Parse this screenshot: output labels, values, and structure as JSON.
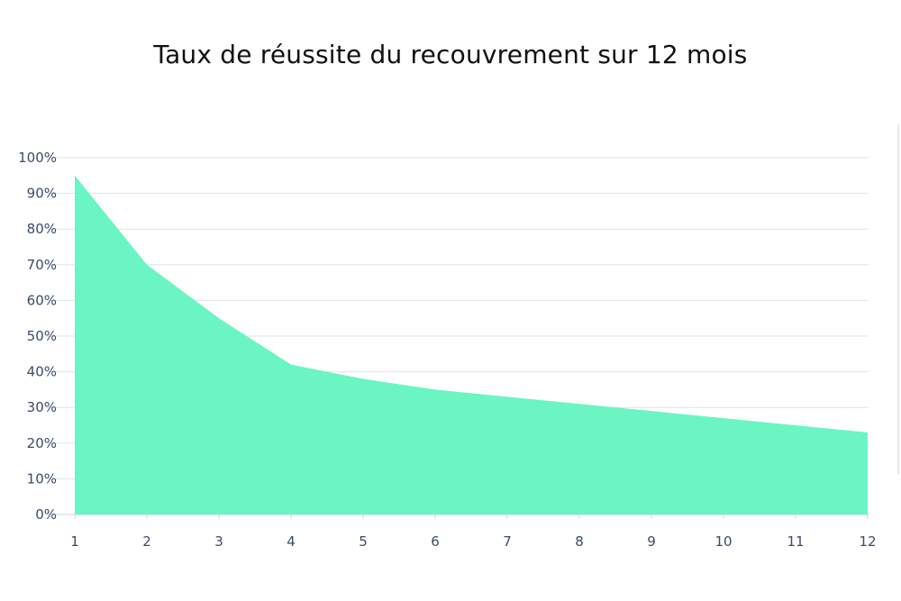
{
  "chart_data": {
    "type": "area",
    "title": "Taux de réussite du recouvrement sur 12 mois",
    "xlabel": "",
    "ylabel": "",
    "x": [
      1,
      2,
      3,
      4,
      5,
      6,
      7,
      8,
      9,
      10,
      11,
      12
    ],
    "series": [
      {
        "values": [
          95,
          70,
          55,
          42,
          38,
          35,
          33,
          31,
          29,
          27,
          25,
          23
        ]
      }
    ],
    "ylim": [
      0,
      100
    ],
    "y_ticks": [
      0,
      10,
      20,
      30,
      40,
      50,
      60,
      70,
      80,
      90,
      100
    ],
    "y_tick_labels": [
      "0%",
      "10%",
      "20%",
      "30%",
      "40%",
      "50%",
      "60%",
      "70%",
      "80%",
      "90%",
      "100%"
    ],
    "x_tick_labels": [
      "1",
      "2",
      "3",
      "4",
      "5",
      "6",
      "7",
      "8",
      "9",
      "10",
      "11",
      "12"
    ],
    "grid": true,
    "legend": "none",
    "colors": {
      "fill": "#6af5c3",
      "grid": "#dfe3ea",
      "tick_text": "#3c4a6b"
    }
  }
}
